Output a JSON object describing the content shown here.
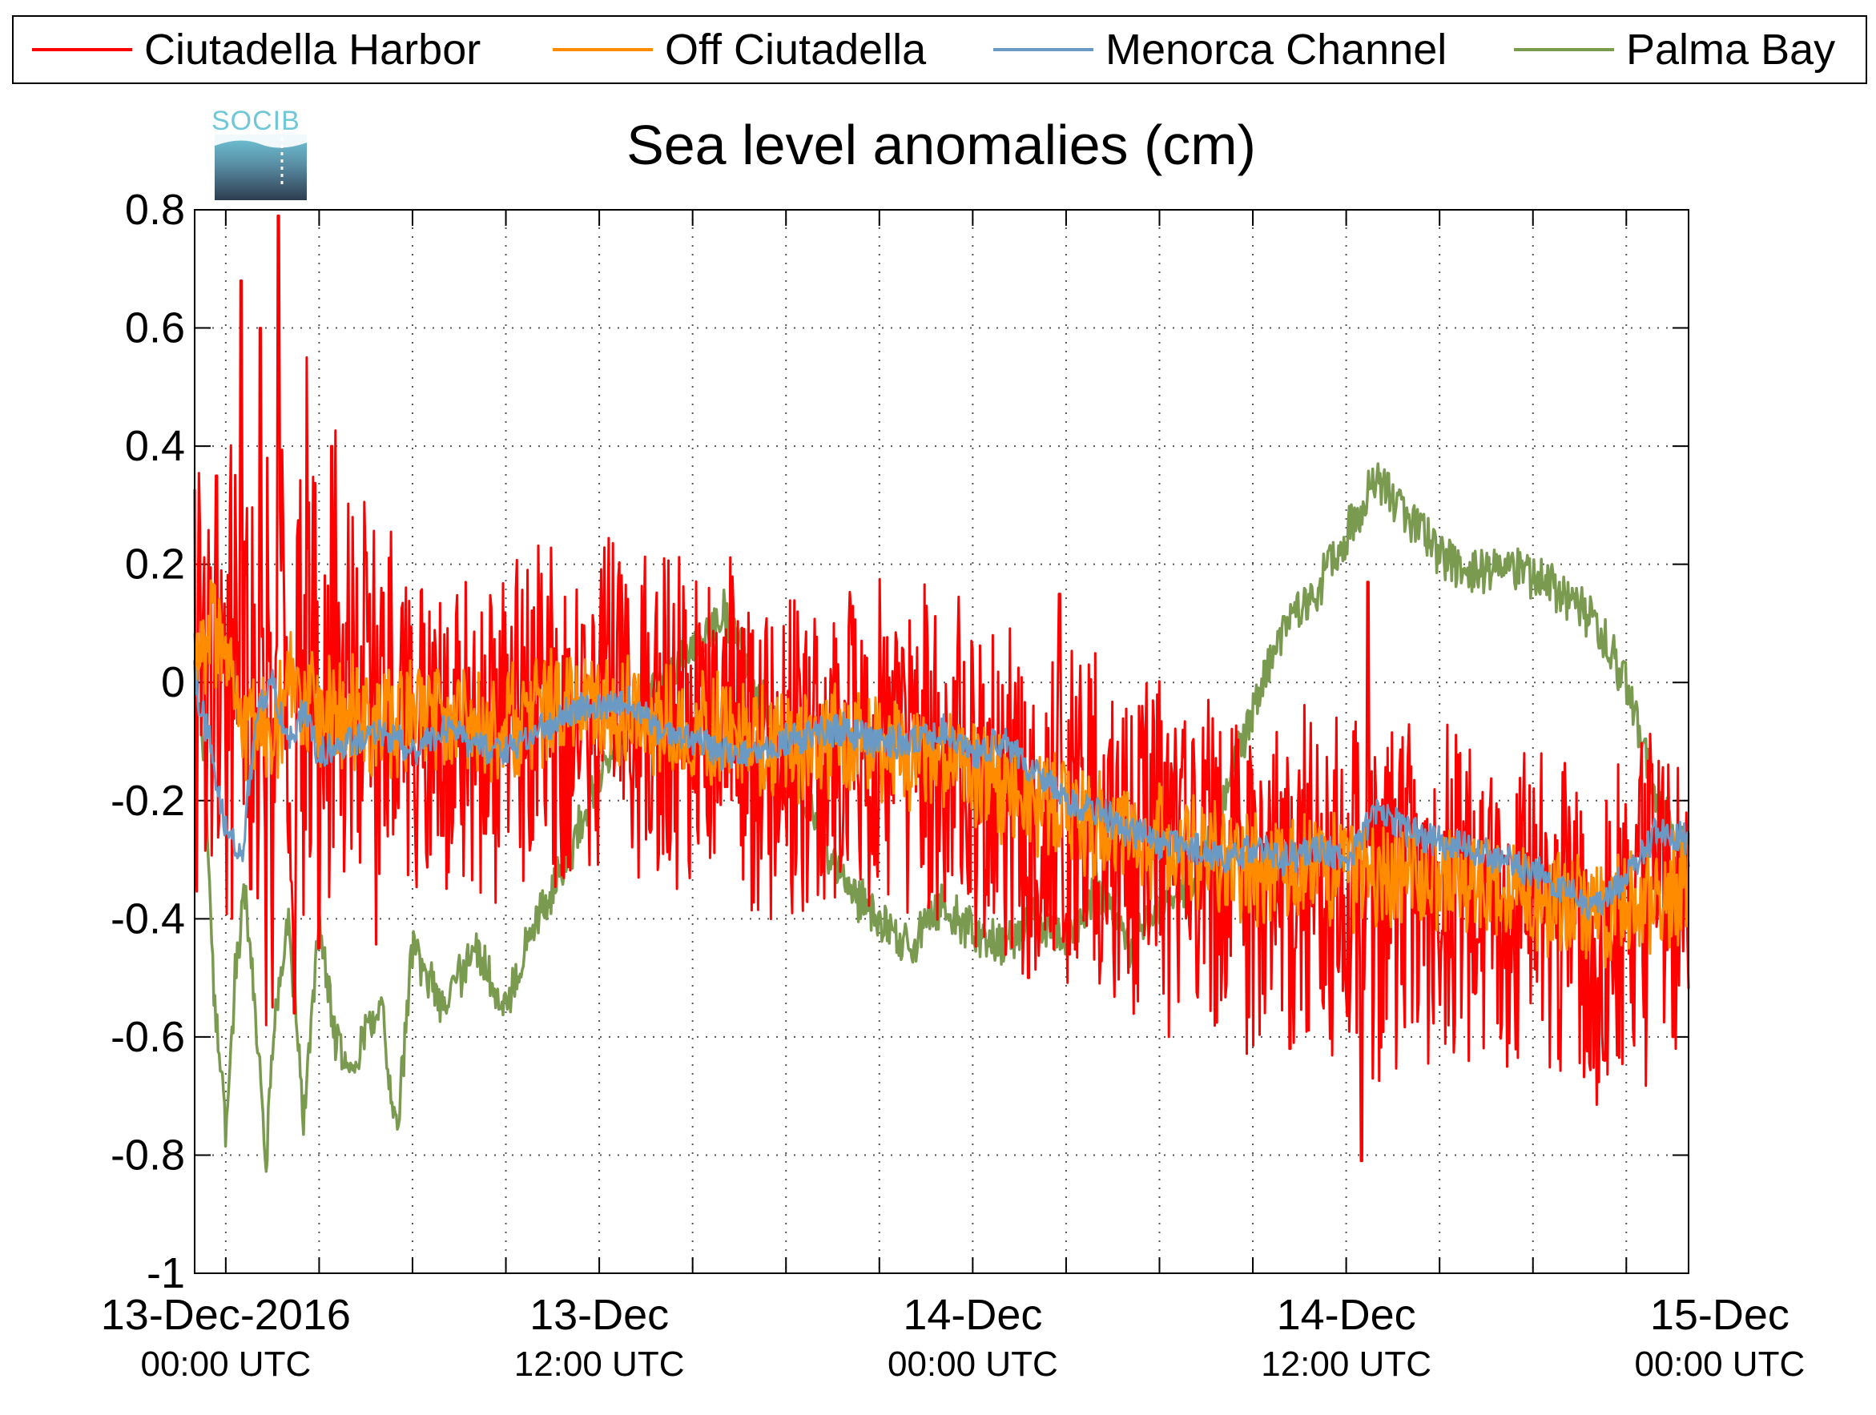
{
  "chart_data": {
    "type": "line",
    "title": "Sea level anomalies (cm)",
    "xlabel": "",
    "ylabel": "",
    "ylim": [
      -1,
      0.8
    ],
    "y_ticks": [
      "0.8",
      "0.6",
      "0.4",
      "0.2",
      "0",
      "-0.2",
      "-0.4",
      "-0.6",
      "-0.8",
      "-1"
    ],
    "y_tick_values": [
      0.8,
      0.6,
      0.4,
      0.2,
      0,
      -0.2,
      -0.4,
      -0.6,
      -0.8,
      -1
    ],
    "x_range_hours": [
      -1,
      47
    ],
    "x_minor_ticks_hours": [
      0,
      3,
      6,
      9,
      12,
      15,
      18,
      21,
      24,
      27,
      30,
      33,
      36,
      39,
      42,
      45
    ],
    "x_labels": [
      {
        "hour": 0,
        "date": "13-Dec-2016",
        "time": "00:00 UTC"
      },
      {
        "hour": 12,
        "date": "13-Dec",
        "time": "12:00 UTC"
      },
      {
        "hour": 24,
        "date": "14-Dec",
        "time": "00:00 UTC"
      },
      {
        "hour": 36,
        "date": "14-Dec",
        "time": "12:00 UTC"
      },
      {
        "hour": 48,
        "date": "15-Dec",
        "time": "00:00 UTC"
      }
    ],
    "grid": true,
    "legend_position": "top",
    "logo_text": "SOCIB",
    "series": [
      {
        "name": "Ciutadella Harbor",
        "color": "#ff0000",
        "noise_amplitude": 0.3,
        "points": [
          [
            -1,
            0.0
          ],
          [
            -0.5,
            0.05
          ],
          [
            0,
            -0.05
          ],
          [
            0.5,
            0.05
          ],
          [
            1,
            -0.05
          ],
          [
            1.5,
            0.02
          ],
          [
            2,
            -0.02
          ],
          [
            3,
            0.05
          ],
          [
            4,
            0.0
          ],
          [
            5,
            -0.03
          ],
          [
            6,
            -0.05
          ],
          [
            7,
            -0.07
          ],
          [
            8,
            -0.08
          ],
          [
            9,
            -0.07
          ],
          [
            10,
            -0.05
          ],
          [
            11,
            -0.05
          ],
          [
            12,
            -0.04
          ],
          [
            13,
            -0.05
          ],
          [
            14,
            -0.07
          ],
          [
            15,
            -0.08
          ],
          [
            16,
            -0.08
          ],
          [
            17,
            -0.1
          ],
          [
            18,
            -0.12
          ],
          [
            19,
            -0.11
          ],
          [
            20,
            -0.1
          ],
          [
            21,
            -0.11
          ],
          [
            22,
            -0.12
          ],
          [
            23,
            -0.13
          ],
          [
            24,
            -0.15
          ],
          [
            25,
            -0.18
          ],
          [
            25.5,
            -0.22
          ],
          [
            26,
            -0.24
          ],
          [
            27,
            -0.22
          ],
          [
            28,
            -0.24
          ],
          [
            29,
            -0.27
          ],
          [
            30,
            -0.28
          ],
          [
            31,
            -0.3
          ],
          [
            32,
            -0.32
          ],
          [
            33,
            -0.35
          ],
          [
            34,
            -0.33
          ],
          [
            35,
            -0.33
          ],
          [
            36,
            -0.35
          ],
          [
            37,
            -0.38
          ],
          [
            38,
            -0.36
          ],
          [
            39,
            -0.35
          ],
          [
            40,
            -0.35
          ],
          [
            41,
            -0.37
          ],
          [
            42,
            -0.38
          ],
          [
            43,
            -0.4
          ],
          [
            44,
            -0.42
          ],
          [
            45,
            -0.4
          ],
          [
            46,
            -0.38
          ],
          [
            47,
            -0.35
          ]
        ],
        "spikes": [
          [
            -0.3,
            0.35
          ],
          [
            0.2,
            -0.4
          ],
          [
            0.5,
            0.68
          ],
          [
            0.8,
            -0.35
          ],
          [
            1.1,
            0.6
          ],
          [
            1.5,
            -0.55
          ],
          [
            1.7,
            0.79
          ],
          [
            2.2,
            -0.56
          ],
          [
            2.6,
            0.55
          ],
          [
            3.0,
            -0.45
          ],
          [
            3.4,
            0.4
          ],
          [
            3.8,
            -0.32
          ],
          [
            4.5,
            0.22
          ],
          [
            25.8,
            -0.5
          ],
          [
            26.8,
            0.15
          ],
          [
            36.7,
            0.17
          ],
          [
            36.5,
            -0.81
          ],
          [
            30.3,
            -0.6
          ],
          [
            34.2,
            -0.62
          ],
          [
            44.3,
            -0.64
          ],
          [
            46.5,
            -0.6
          ],
          [
            1.3,
            -0.58
          ]
        ]
      },
      {
        "name": "Off Ciutadella",
        "color": "#ff8c00",
        "noise_amplitude": 0.1,
        "points": [
          [
            -1,
            0.0
          ],
          [
            -0.5,
            0.1
          ],
          [
            0,
            0.05
          ],
          [
            0.5,
            -0.1
          ],
          [
            1,
            -0.05
          ],
          [
            1.5,
            -0.12
          ],
          [
            2,
            0.0
          ],
          [
            3,
            -0.05
          ],
          [
            4,
            -0.05
          ],
          [
            5,
            -0.08
          ],
          [
            6,
            -0.05
          ],
          [
            7,
            -0.05
          ],
          [
            8,
            -0.08
          ],
          [
            9,
            -0.07
          ],
          [
            10,
            -0.05
          ],
          [
            11,
            -0.03
          ],
          [
            12,
            -0.04
          ],
          [
            13,
            -0.05
          ],
          [
            14,
            -0.06
          ],
          [
            15,
            -0.08
          ],
          [
            16,
            -0.08
          ],
          [
            17,
            -0.1
          ],
          [
            18,
            -0.11
          ],
          [
            19,
            -0.1
          ],
          [
            20,
            -0.1
          ],
          [
            21,
            -0.11
          ],
          [
            22,
            -0.13
          ],
          [
            23,
            -0.13
          ],
          [
            24,
            -0.15
          ],
          [
            25,
            -0.18
          ],
          [
            26,
            -0.2
          ],
          [
            27,
            -0.22
          ],
          [
            28,
            -0.24
          ],
          [
            29,
            -0.26
          ],
          [
            30,
            -0.27
          ],
          [
            31,
            -0.29
          ],
          [
            32,
            -0.3
          ],
          [
            33,
            -0.32
          ],
          [
            34,
            -0.31
          ],
          [
            35,
            -0.31
          ],
          [
            36,
            -0.32
          ],
          [
            37,
            -0.34
          ],
          [
            38,
            -0.33
          ],
          [
            39,
            -0.33
          ],
          [
            40,
            -0.33
          ],
          [
            41,
            -0.35
          ],
          [
            42,
            -0.36
          ],
          [
            43,
            -0.37
          ],
          [
            44,
            -0.4
          ],
          [
            45,
            -0.38
          ],
          [
            46,
            -0.36
          ],
          [
            47,
            -0.34
          ]
        ]
      },
      {
        "name": "Menorca Channel",
        "color": "#6a9ac4",
        "noise_amplitude": 0.03,
        "points": [
          [
            -1,
            0.0
          ],
          [
            -0.5,
            -0.1
          ],
          [
            0,
            -0.25
          ],
          [
            0.5,
            -0.3
          ],
          [
            1,
            -0.05
          ],
          [
            1.5,
            0.0
          ],
          [
            2,
            -0.1
          ],
          [
            2.5,
            -0.05
          ],
          [
            3,
            -0.12
          ],
          [
            4,
            -0.1
          ],
          [
            5,
            -0.08
          ],
          [
            6,
            -0.12
          ],
          [
            7,
            -0.08
          ],
          [
            8,
            -0.1
          ],
          [
            9,
            -0.12
          ],
          [
            10,
            -0.08
          ],
          [
            11,
            -0.05
          ],
          [
            12,
            -0.04
          ],
          [
            13,
            -0.03
          ],
          [
            14,
            -0.08
          ],
          [
            15,
            -0.1
          ],
          [
            16,
            -0.12
          ],
          [
            17,
            -0.12
          ],
          [
            18,
            -0.1
          ],
          [
            19,
            -0.08
          ],
          [
            20,
            -0.08
          ],
          [
            21,
            -0.1
          ],
          [
            22,
            -0.1
          ],
          [
            23,
            -0.08
          ],
          [
            24,
            -0.12
          ],
          [
            25,
            -0.1
          ],
          [
            26,
            -0.15
          ],
          [
            27,
            -0.2
          ],
          [
            28,
            -0.22
          ],
          [
            29,
            -0.25
          ],
          [
            30,
            -0.27
          ],
          [
            31,
            -0.28
          ],
          [
            32,
            -0.3
          ],
          [
            33,
            -0.28
          ],
          [
            34,
            -0.3
          ],
          [
            35,
            -0.28
          ],
          [
            36,
            -0.3
          ],
          [
            37,
            -0.22
          ],
          [
            38,
            -0.25
          ],
          [
            39,
            -0.27
          ],
          [
            40,
            -0.28
          ],
          [
            41,
            -0.3
          ],
          [
            42,
            -0.32
          ],
          [
            43,
            -0.35
          ],
          [
            44,
            -0.38
          ],
          [
            45,
            -0.33
          ],
          [
            46,
            -0.25
          ],
          [
            47,
            -0.27
          ]
        ]
      },
      {
        "name": "Palma Bay",
        "color": "#7a9a50",
        "noise_amplitude": 0.04,
        "points": [
          [
            -1,
            0.0
          ],
          [
            -0.7,
            -0.1
          ],
          [
            -0.4,
            -0.5
          ],
          [
            0,
            -0.77
          ],
          [
            0.3,
            -0.5
          ],
          [
            0.6,
            -0.35
          ],
          [
            1,
            -0.6
          ],
          [
            1.3,
            -0.8
          ],
          [
            1.6,
            -0.55
          ],
          [
            2,
            -0.4
          ],
          [
            2.3,
            -0.6
          ],
          [
            2.5,
            -0.75
          ],
          [
            3,
            -0.4
          ],
          [
            3.5,
            -0.6
          ],
          [
            4,
            -0.65
          ],
          [
            5,
            -0.55
          ],
          [
            5.5,
            -0.77
          ],
          [
            6,
            -0.45
          ],
          [
            7,
            -0.55
          ],
          [
            8,
            -0.45
          ],
          [
            9,
            -0.55
          ],
          [
            10,
            -0.4
          ],
          [
            11,
            -0.3
          ],
          [
            12,
            -0.15
          ],
          [
            13,
            -0.05
          ],
          [
            14,
            0.0
          ],
          [
            15,
            0.05
          ],
          [
            16,
            0.12
          ],
          [
            17,
            0.0
          ],
          [
            18,
            -0.1
          ],
          [
            19,
            -0.25
          ],
          [
            20,
            -0.35
          ],
          [
            21,
            -0.4
          ],
          [
            22,
            -0.45
          ],
          [
            23,
            -0.38
          ],
          [
            24,
            -0.42
          ],
          [
            25,
            -0.45
          ],
          [
            26,
            -0.4
          ],
          [
            27,
            -0.43
          ],
          [
            28,
            -0.35
          ],
          [
            29,
            -0.45
          ],
          [
            30,
            -0.37
          ],
          [
            31,
            -0.35
          ],
          [
            32,
            -0.2
          ],
          [
            33,
            -0.05
          ],
          [
            34,
            0.1
          ],
          [
            35,
            0.15
          ],
          [
            36,
            0.25
          ],
          [
            37,
            0.35
          ],
          [
            38,
            0.28
          ],
          [
            39,
            0.22
          ],
          [
            40,
            0.18
          ],
          [
            41,
            0.2
          ],
          [
            42,
            0.18
          ],
          [
            43,
            0.15
          ],
          [
            44,
            0.1
          ],
          [
            45,
            0.0
          ],
          [
            46,
            -0.2
          ],
          [
            47,
            -0.3
          ]
        ]
      }
    ]
  }
}
